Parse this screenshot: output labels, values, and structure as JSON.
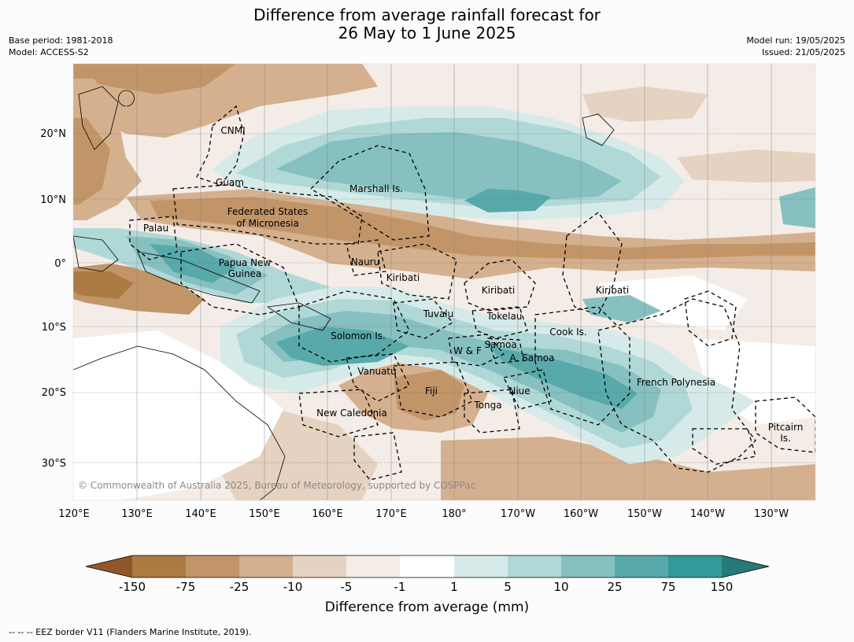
{
  "title_line1": "Difference from average rainfall forecast for",
  "title_line2": "26 May to 1 June 2025",
  "meta_left": [
    "Base period: 1981-2018",
    "Model: ACCESS-S2"
  ],
  "meta_right": [
    "Model run: 19/05/2025",
    "Issued: 21/05/2025"
  ],
  "copyright": "© Commonwealth of Australia 2025, Bureau of Meteorology, supported by COSPPac",
  "lat_ticks": [
    "20°N",
    "10°N",
    "0°",
    "10°S",
    "20°S",
    "30°S"
  ],
  "lon_ticks": [
    "120°E",
    "130°E",
    "140°E",
    "150°E",
    "160°E",
    "170°E",
    "180°",
    "170°W",
    "160°W",
    "150°W",
    "140°W",
    "130°W"
  ],
  "places": [
    "CNMI",
    "Guam",
    "Marshall Is.",
    "Federated States",
    "of Micronesia",
    "Palau",
    "Papua New",
    "Guinea",
    "Nauru",
    "Kiribati",
    "Kiribati",
    "Kiribati",
    "Tuvalu",
    "Tokelau",
    "Solomon Is.",
    "Cook Is.",
    "Samoa",
    "W & F",
    "A. Samoa",
    "Vanuatu",
    "Fiji",
    "Niue",
    "French Polynesia",
    "Tonga",
    "New Caledonia",
    "Pitcairn",
    "Is."
  ],
  "colorbar": {
    "ticks": [
      "-150",
      "-75",
      "-25",
      "-10",
      "-5",
      "-1",
      "1",
      "5",
      "10",
      "25",
      "75",
      "150"
    ],
    "colors": [
      "#8e582b",
      "#ac7a43",
      "#c29569",
      "#d4b08e",
      "#e6d2c0",
      "#f4ece6",
      "#ffffff",
      "#d6ebe9",
      "#b0d8d6",
      "#86c0c0",
      "#58a9aa",
      "#33999a",
      "#267a79"
    ],
    "label": "Difference from average (mm)"
  },
  "footnote": "--  --  -- EEZ border V11 (Flanders Marine Institute, 2019)."
}
